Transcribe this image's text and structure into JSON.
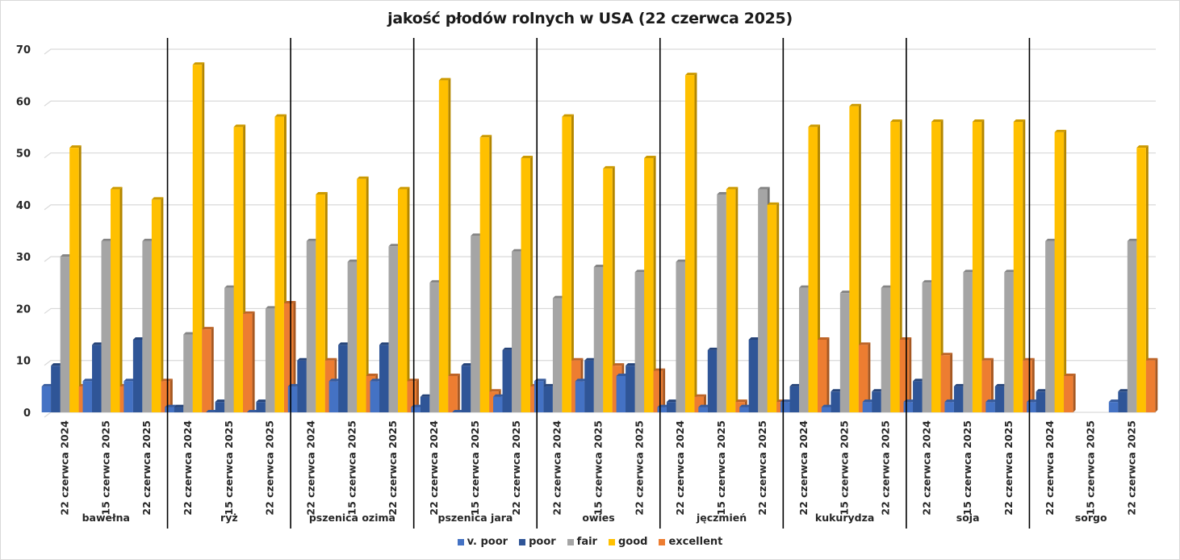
{
  "chart_data": {
    "type": "bar",
    "title": "jakość płodów rolnych w USA (22 czerwca 2025)",
    "xlabel": "",
    "ylabel": "",
    "ylim": [
      0,
      70
    ],
    "yticks": [
      "0",
      "10",
      "20",
      "30",
      "40",
      "50",
      "60",
      "70"
    ],
    "grid": true,
    "legend_position": "bottom",
    "series_names": [
      "v. poor",
      "poor",
      "fair",
      "good",
      "excellent"
    ],
    "series_colors": [
      "#4472C4",
      "#2F5597",
      "#A5A5A5",
      "#FFC000",
      "#ED7D31"
    ],
    "groups": [
      {
        "name": "bawełna",
        "dates": [
          "22 czerwca 2024",
          "15 czerwca 2025",
          "22 czerwca 2025"
        ],
        "values": [
          [
            5,
            9,
            30,
            51,
            5
          ],
          [
            6,
            13,
            33,
            43,
            5
          ],
          [
            6,
            14,
            33,
            41,
            6
          ]
        ]
      },
      {
        "name": "ryż",
        "dates": [
          "22 czerwca 2024",
          "15 czerwca 2025",
          "22 czerwca 2025"
        ],
        "values": [
          [
            1,
            1,
            15,
            67,
            16
          ],
          [
            0,
            2,
            24,
            55,
            19
          ],
          [
            0,
            2,
            20,
            57,
            21
          ]
        ]
      },
      {
        "name": "pszenica ozima",
        "dates": [
          "22 czerwca 2024",
          "15 czerwca 2025",
          "22 czerwca 2025"
        ],
        "values": [
          [
            5,
            10,
            33,
            42,
            10
          ],
          [
            6,
            13,
            29,
            45,
            7
          ],
          [
            6,
            13,
            32,
            43,
            6
          ]
        ]
      },
      {
        "name": "pszenica jara",
        "dates": [
          "22 czerwca 2024",
          "15 czerwca 2025",
          "22 czerwca 2025"
        ],
        "values": [
          [
            1,
            3,
            25,
            64,
            7
          ],
          [
            0,
            9,
            34,
            53,
            4
          ],
          [
            3,
            12,
            31,
            49,
            5
          ]
        ]
      },
      {
        "name": "owies",
        "dates": [
          "22 czerwca 2024",
          "15 czerwca 2025",
          "22 czerwca 2025"
        ],
        "values": [
          [
            6,
            5,
            22,
            57,
            10
          ],
          [
            6,
            10,
            28,
            47,
            9
          ],
          [
            7,
            9,
            27,
            49,
            8
          ]
        ]
      },
      {
        "name": "jęczmień",
        "dates": [
          "22 czerwca 2024",
          "15 czerwca 2025",
          "22 czerwca 2025"
        ],
        "values": [
          [
            1,
            2,
            29,
            65,
            3
          ],
          [
            1,
            12,
            42,
            43,
            2
          ],
          [
            1,
            14,
            43,
            40,
            2
          ]
        ]
      },
      {
        "name": "kukurydza",
        "dates": [
          "22 czerwca 2024",
          "15 czerwca 2025",
          "22 czerwca 2025"
        ],
        "values": [
          [
            2,
            5,
            24,
            55,
            14
          ],
          [
            1,
            4,
            23,
            59,
            13
          ],
          [
            2,
            4,
            24,
            56,
            14
          ]
        ]
      },
      {
        "name": "soja",
        "dates": [
          "22 czerwca 2024",
          "15 czerwca 2025",
          "22 czerwca 2025"
        ],
        "values": [
          [
            2,
            6,
            25,
            56,
            11
          ],
          [
            2,
            5,
            27,
            56,
            10
          ],
          [
            2,
            5,
            27,
            56,
            10
          ]
        ]
      },
      {
        "name": "sorgo",
        "dates": [
          "22 czerwca 2024",
          "15 czerwca 2025",
          "22 czerwca 2025"
        ],
        "values": [
          [
            2,
            4,
            33,
            54,
            7
          ],
          [
            null,
            null,
            null,
            null,
            null
          ],
          [
            2,
            4,
            33,
            51,
            10
          ]
        ]
      }
    ]
  }
}
